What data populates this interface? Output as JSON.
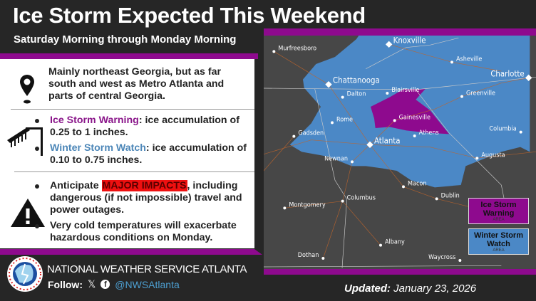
{
  "header": {
    "title": "Ice Storm Expected This Weekend",
    "subtitle": "Saturday Morning through Monday Morning"
  },
  "location": {
    "icon": "map-pin-icon",
    "text": "Mainly northeast Georgia, but as far south and west as Metro Atlanta and parts of central Georgia."
  },
  "accumulation": {
    "icon": "iced-power-line-icon",
    "items": [
      {
        "label": "Ice Storm Warning",
        "text": ": ice accumulation of 0.25 to 1 inches.",
        "color": "#8a168a"
      },
      {
        "label": "Winter Storm Watch",
        "text": ": ice accumulation of 0.10 to 0.75 inches.",
        "color": "#4d87b8"
      }
    ]
  },
  "impacts": {
    "icon": "warning-triangle-icon",
    "items": [
      {
        "pre": "Anticipate ",
        "highlight": "MAJOR IMPACTS",
        "post": ", including dangerous (if not impossible) travel and power outages."
      },
      {
        "pre": "Very cold temperatures will exacerbate hazardous conditions on Monday."
      }
    ]
  },
  "map": {
    "colors": {
      "warning": "#8e0a8e",
      "watch": "#4b88c6",
      "land": "#4a4a4a"
    },
    "cities": [
      "Murfreesboro",
      "Knoxville",
      "Asheville",
      "Charlotte",
      "Chattanooga",
      "Blairsville",
      "Dalton",
      "Greenville",
      "Gainesville",
      "Rome",
      "Gadsden",
      "Athens",
      "Columbia",
      "Atlanta",
      "Newnan",
      "Augusta",
      "Macon",
      "Dublin",
      "Columbus",
      "Montgomery",
      "Albany",
      "Dothan",
      "Waycross"
    ],
    "legend": [
      {
        "title": "Ice Storm Warning",
        "sub": "AREA"
      },
      {
        "title": "Winter Storm Watch",
        "sub": "AREA"
      }
    ]
  },
  "footer": {
    "office": "NATIONAL WEATHER SERVICE ATLANTA",
    "follow_label": "Follow:",
    "handle": "@NWSAtlanta",
    "updated_label": "Updated:",
    "updated_date": "January 23, 2026",
    "logo_text": "NATIONAL WEATHER SERVICE"
  }
}
